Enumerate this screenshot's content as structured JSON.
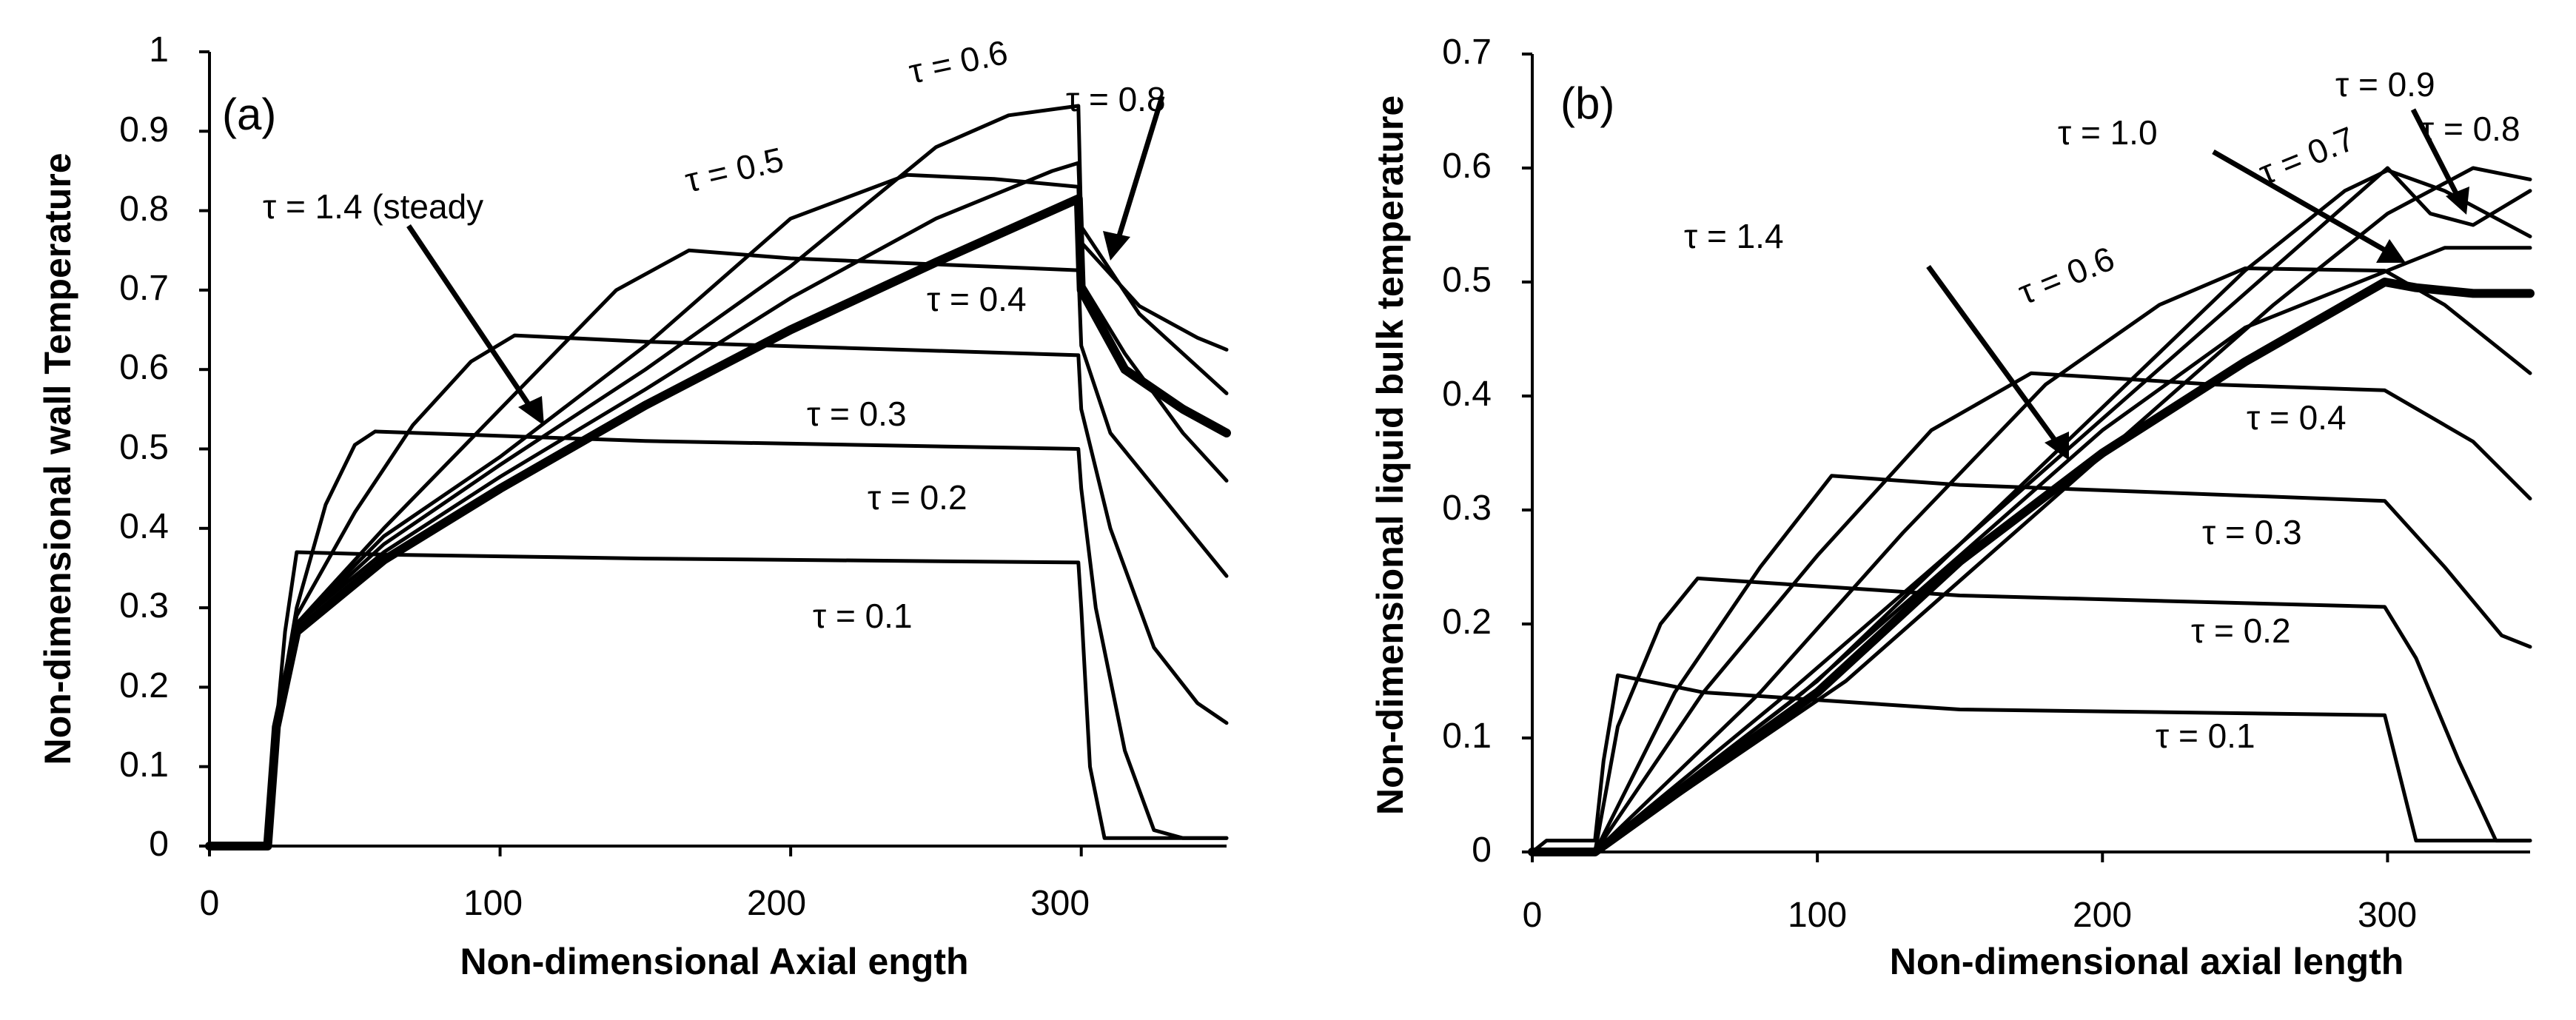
{
  "colors": {
    "line": "#000000",
    "background": "#ffffff"
  },
  "chart_data": [
    {
      "type": "line",
      "panel_label": "(a)",
      "xlabel": "Non-dimensional Axial ength",
      "ylabel": "Non-dimensional wall Temperature",
      "xlim": [
        0,
        350
      ],
      "ylim": [
        0,
        1
      ],
      "xticks": [
        "0",
        "100",
        "200",
        "300"
      ],
      "yticks": [
        "0",
        "0.1",
        "0.2",
        "0.3",
        "0.4",
        "0.5",
        "0.6",
        "0.7",
        "0.8",
        "0.9",
        "1"
      ],
      "annotations": [
        {
          "text": "τ = 0.6"
        },
        {
          "text": "τ = 0.8"
        },
        {
          "text": "τ = 0.5"
        },
        {
          "text": "τ = 1.4 (steady"
        },
        {
          "text": "τ = 0.4"
        },
        {
          "text": "τ = 0.3"
        },
        {
          "text": "τ = 0.2"
        },
        {
          "text": "τ = 0.1"
        }
      ],
      "series": [
        {
          "name": "τ = 0.1",
          "points": [
            [
              0,
              0
            ],
            [
              20,
              0
            ],
            [
              23,
              0.15
            ],
            [
              26,
              0.27
            ],
            [
              30,
              0.37
            ],
            [
              60,
              0.367
            ],
            [
              150,
              0.362
            ],
            [
              299,
              0.357
            ],
            [
              300,
              0.3
            ],
            [
              303,
              0.1
            ],
            [
              308,
              0.01
            ],
            [
              350,
              0.01
            ]
          ]
        },
        {
          "name": "τ = 0.2",
          "points": [
            [
              0,
              0
            ],
            [
              20,
              0
            ],
            [
              23,
              0.15
            ],
            [
              30,
              0.3
            ],
            [
              40,
              0.43
            ],
            [
              50,
              0.505
            ],
            [
              57,
              0.522
            ],
            [
              150,
              0.51
            ],
            [
              299,
              0.5
            ],
            [
              300,
              0.45
            ],
            [
              305,
              0.3
            ],
            [
              315,
              0.12
            ],
            [
              325,
              0.02
            ],
            [
              335,
              0.01
            ],
            [
              350,
              0.01
            ]
          ]
        },
        {
          "name": "τ = 0.3",
          "points": [
            [
              0,
              0
            ],
            [
              20,
              0
            ],
            [
              23,
              0.15
            ],
            [
              30,
              0.29
            ],
            [
              50,
              0.42
            ],
            [
              70,
              0.53
            ],
            [
              90,
              0.61
            ],
            [
              105,
              0.643
            ],
            [
              150,
              0.635
            ],
            [
              299,
              0.618
            ],
            [
              300,
              0.55
            ],
            [
              310,
              0.4
            ],
            [
              325,
              0.25
            ],
            [
              340,
              0.18
            ],
            [
              350,
              0.155
            ]
          ]
        },
        {
          "name": "τ = 0.4",
          "points": [
            [
              0,
              0
            ],
            [
              20,
              0
            ],
            [
              23,
              0.15
            ],
            [
              30,
              0.28
            ],
            [
              60,
              0.4
            ],
            [
              100,
              0.55
            ],
            [
              140,
              0.7
            ],
            [
              165,
              0.75
            ],
            [
              200,
              0.74
            ],
            [
              299,
              0.725
            ],
            [
              300,
              0.63
            ],
            [
              310,
              0.52
            ],
            [
              330,
              0.43
            ],
            [
              350,
              0.34
            ]
          ]
        },
        {
          "name": "τ = 0.5",
          "points": [
            [
              0,
              0
            ],
            [
              20,
              0
            ],
            [
              23,
              0.15
            ],
            [
              30,
              0.28
            ],
            [
              60,
              0.39
            ],
            [
              100,
              0.49
            ],
            [
              150,
              0.63
            ],
            [
              200,
              0.79
            ],
            [
              240,
              0.845
            ],
            [
              270,
              0.84
            ],
            [
              299,
              0.83
            ],
            [
              300,
              0.71
            ],
            [
              315,
              0.62
            ],
            [
              335,
              0.52
            ],
            [
              350,
              0.46
            ]
          ]
        },
        {
          "name": "τ = 0.6",
          "points": [
            [
              0,
              0
            ],
            [
              20,
              0
            ],
            [
              23,
              0.15
            ],
            [
              30,
              0.28
            ],
            [
              60,
              0.38
            ],
            [
              100,
              0.48
            ],
            [
              150,
              0.6
            ],
            [
              200,
              0.73
            ],
            [
              250,
              0.88
            ],
            [
              275,
              0.92
            ],
            [
              299,
              0.932
            ],
            [
              300,
              0.78
            ],
            [
              320,
              0.67
            ],
            [
              350,
              0.57
            ]
          ]
        },
        {
          "name": "τ = 0.8",
          "points": [
            [
              0,
              0
            ],
            [
              20,
              0
            ],
            [
              23,
              0.15
            ],
            [
              30,
              0.28
            ],
            [
              60,
              0.37
            ],
            [
              100,
              0.465
            ],
            [
              150,
              0.575
            ],
            [
              200,
              0.69
            ],
            [
              250,
              0.79
            ],
            [
              290,
              0.85
            ],
            [
              299,
              0.86
            ],
            [
              300,
              0.76
            ],
            [
              320,
              0.68
            ],
            [
              340,
              0.64
            ],
            [
              350,
              0.625
            ]
          ]
        },
        {
          "name": "τ = 1.4 (steady",
          "thick": true,
          "points": [
            [
              0,
              0
            ],
            [
              20,
              0
            ],
            [
              23,
              0.15
            ],
            [
              30,
              0.27
            ],
            [
              60,
              0.36
            ],
            [
              100,
              0.45
            ],
            [
              150,
              0.555
            ],
            [
              200,
              0.65
            ],
            [
              250,
              0.735
            ],
            [
              299,
              0.815
            ],
            [
              300,
              0.7
            ],
            [
              315,
              0.6
            ],
            [
              335,
              0.55
            ],
            [
              350,
              0.52
            ]
          ]
        }
      ]
    },
    {
      "type": "line",
      "panel_label": "(b)",
      "xlabel": "Non-dimensional axial length",
      "ylabel": "Non-dimensional liquid bulk temperature",
      "xlim": [
        0,
        350
      ],
      "ylim": [
        0,
        0.7
      ],
      "xticks": [
        "0",
        "100",
        "200",
        "300"
      ],
      "yticks": [
        "0",
        "0.1",
        "0.2",
        "0.3",
        "0.4",
        "0.5",
        "0.6",
        "0.7"
      ],
      "annotations": [
        {
          "text": "τ = 0.9"
        },
        {
          "text": "τ = 1.0"
        },
        {
          "text": "τ = 0.7"
        },
        {
          "text": "τ = 0.8"
        },
        {
          "text": "τ = 1.4"
        },
        {
          "text": "τ = 0.6"
        },
        {
          "text": "τ = 0.4"
        },
        {
          "text": "τ = 0.3"
        },
        {
          "text": "τ = 0.2"
        },
        {
          "text": "τ = 0.1"
        }
      ],
      "series": [
        {
          "name": "τ = 0.1",
          "points": [
            [
              0,
              0
            ],
            [
              5,
              0.01
            ],
            [
              22,
              0.01
            ],
            [
              25,
              0.08
            ],
            [
              30,
              0.155
            ],
            [
              60,
              0.14
            ],
            [
              150,
              0.125
            ],
            [
              299,
              0.12
            ],
            [
              303,
              0.08
            ],
            [
              310,
              0.01
            ],
            [
              350,
              0.01
            ]
          ]
        },
        {
          "name": "τ = 0.2",
          "points": [
            [
              0,
              0
            ],
            [
              22,
              0
            ],
            [
              30,
              0.11
            ],
            [
              45,
              0.2
            ],
            [
              58,
              0.24
            ],
            [
              150,
              0.225
            ],
            [
              299,
              0.215
            ],
            [
              310,
              0.17
            ],
            [
              325,
              0.08
            ],
            [
              338,
              0.01
            ],
            [
              350,
              0.01
            ]
          ]
        },
        {
          "name": "τ = 0.3",
          "points": [
            [
              0,
              0
            ],
            [
              22,
              0
            ],
            [
              50,
              0.14
            ],
            [
              80,
              0.25
            ],
            [
              105,
              0.33
            ],
            [
              150,
              0.322
            ],
            [
              299,
              0.308
            ],
            [
              320,
              0.25
            ],
            [
              340,
              0.19
            ],
            [
              350,
              0.18
            ]
          ]
        },
        {
          "name": "τ = 0.4",
          "points": [
            [
              0,
              0
            ],
            [
              22,
              0
            ],
            [
              60,
              0.14
            ],
            [
              100,
              0.26
            ],
            [
              140,
              0.37
            ],
            [
              175,
              0.42
            ],
            [
              240,
              0.41
            ],
            [
              299,
              0.405
            ],
            [
              330,
              0.36
            ],
            [
              350,
              0.31
            ]
          ]
        },
        {
          "name": "τ = 0.6",
          "points": [
            [
              0,
              0
            ],
            [
              22,
              0
            ],
            [
              80,
              0.14
            ],
            [
              130,
              0.28
            ],
            [
              180,
              0.41
            ],
            [
              220,
              0.48
            ],
            [
              250,
              0.512
            ],
            [
              299,
              0.51
            ],
            [
              320,
              0.48
            ],
            [
              350,
              0.42
            ]
          ]
        },
        {
          "name": "τ = 0.7",
          "points": [
            [
              0,
              0
            ],
            [
              22,
              0
            ],
            [
              100,
              0.15
            ],
            [
              150,
              0.27
            ],
            [
              200,
              0.39
            ],
            [
              250,
              0.51
            ],
            [
              285,
              0.58
            ],
            [
              300,
              0.598
            ],
            [
              320,
              0.58
            ],
            [
              350,
              0.54
            ]
          ]
        },
        {
          "name": "τ = 0.8",
          "points": [
            [
              0,
              0
            ],
            [
              22,
              0
            ],
            [
              110,
              0.15
            ],
            [
              160,
              0.26
            ],
            [
              210,
              0.37
            ],
            [
              260,
              0.48
            ],
            [
              300,
              0.56
            ],
            [
              330,
              0.6
            ],
            [
              350,
              0.59
            ]
          ]
        },
        {
          "name": "τ = 0.9",
          "points": [
            [
              0,
              0
            ],
            [
              22,
              0
            ],
            [
              90,
              0.14
            ],
            [
              150,
              0.27
            ],
            [
              200,
              0.38
            ],
            [
              250,
              0.49
            ],
            [
              300,
              0.6
            ],
            [
              315,
              0.56
            ],
            [
              330,
              0.55
            ],
            [
              350,
              0.58
            ]
          ]
        },
        {
          "name": "τ = 1.0",
          "points": [
            [
              0,
              0
            ],
            [
              22,
              0
            ],
            [
              95,
              0.14
            ],
            [
              150,
              0.26
            ],
            [
              200,
              0.37
            ],
            [
              250,
              0.46
            ],
            [
              300,
              0.51
            ],
            [
              320,
              0.53
            ],
            [
              350,
              0.53
            ]
          ]
        },
        {
          "name": "τ = 1.4",
          "thick": true,
          "points": [
            [
              0,
              0
            ],
            [
              22,
              0
            ],
            [
              100,
              0.14
            ],
            [
              150,
              0.255
            ],
            [
              200,
              0.35
            ],
            [
              250,
              0.43
            ],
            [
              299,
              0.5
            ],
            [
              310,
              0.495
            ],
            [
              330,
              0.49
            ],
            [
              350,
              0.49
            ]
          ]
        }
      ]
    }
  ]
}
